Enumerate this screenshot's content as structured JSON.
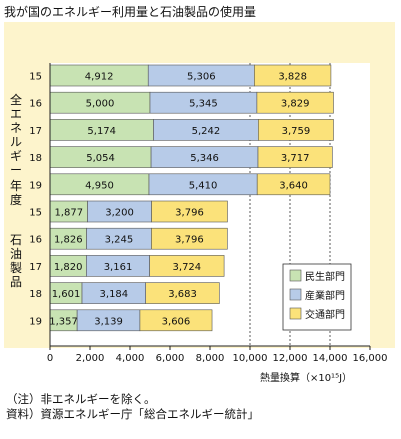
{
  "title": "我が国のエネルギー利用量と石油製品の使用量",
  "notes": [
    "（注）非エネルギーを除く。",
    "資料）資源エネルギー庁「総合エネルギー統計」"
  ],
  "chart_data": {
    "type": "bar",
    "orientation": "horizontal",
    "stacked": true,
    "groups": [
      {
        "label": "全エネルギー",
        "years": [
          "15",
          "16",
          "17",
          "18",
          "19"
        ]
      },
      {
        "label": "石油製品",
        "years": [
          "15",
          "16",
          "17",
          "18",
          "19"
        ]
      }
    ],
    "year_axis_label": "年度",
    "categories": [
      "全エネルギー 15",
      "全エネルギー 16",
      "全エネルギー 17",
      "全エネルギー 18",
      "全エネルギー 19",
      "石油製品 15",
      "石油製品 16",
      "石油製品 17",
      "石油製品 18",
      "石油製品 19"
    ],
    "series": [
      {
        "name": "民生部門",
        "color": "#c8e3b3",
        "values": [
          4912,
          5000,
          5174,
          5054,
          4950,
          1877,
          1826,
          1820,
          1601,
          1357
        ]
      },
      {
        "name": "産業部門",
        "color": "#b7cbe8",
        "values": [
          5306,
          5345,
          5242,
          5346,
          5410,
          3200,
          3245,
          3161,
          3184,
          3139
        ]
      },
      {
        "name": "交通部門",
        "color": "#fbe27a",
        "values": [
          3828,
          3829,
          3759,
          3717,
          3640,
          3796,
          3796,
          3724,
          3683,
          3606
        ]
      }
    ],
    "value_labels": [
      [
        "4,912",
        "5,000",
        "5,174",
        "5,054",
        "4,950",
        "1,877",
        "1,826",
        "1,820",
        "1,601",
        "1,357"
      ],
      [
        "5,306",
        "5,345",
        "5,242",
        "5,346",
        "5,410",
        "3,200",
        "3,245",
        "3,161",
        "3,184",
        "3,139"
      ],
      [
        "3,828",
        "3,829",
        "3,759",
        "3,717",
        "3,640",
        "3,796",
        "3,796",
        "3,724",
        "3,683",
        "3,606"
      ]
    ],
    "xlim": [
      0,
      16000
    ],
    "xticks": [
      0,
      2000,
      4000,
      6000,
      8000,
      10000,
      12000,
      14000,
      16000
    ],
    "xtick_labels": [
      "0",
      "2,000",
      "4,000",
      "6,000",
      "8,000",
      "10,000",
      "12,000",
      "14,000",
      "16,000"
    ],
    "xlabel": "熱量換算（×10¹⁵J）",
    "dashed_gridlines_at": [
      10000,
      12000,
      14000
    ],
    "legend_position": "right"
  }
}
